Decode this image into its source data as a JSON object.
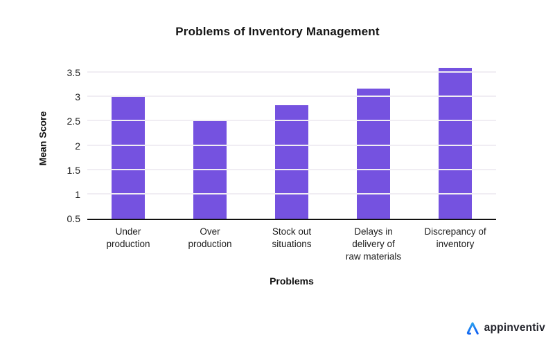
{
  "page": {
    "background": "#ffffff"
  },
  "chart_data": {
    "type": "bar",
    "title": "Problems of Inventory Management",
    "xlabel": "Problems",
    "ylabel": "Mean Score",
    "categories": [
      "Under production",
      "Over production",
      "Stock out situations",
      "Delays in delivery of raw materials",
      "Discrepancy of inventory"
    ],
    "label_lines": [
      [
        "Under",
        "production"
      ],
      [
        "Over",
        "production"
      ],
      [
        "Stock out",
        "situations"
      ],
      [
        "Delays in",
        "delivery of",
        "raw materials"
      ],
      [
        "Discrepancy of",
        "inventory"
      ]
    ],
    "values": [
      3.03,
      2.5,
      2.83,
      3.18,
      3.6
    ],
    "ylim": [
      0.5,
      3.8
    ],
    "yticks": [
      0.5,
      1,
      1.5,
      2,
      2.5,
      3,
      3.5
    ],
    "grid": true,
    "legend": false,
    "bar_color": "#7552e0",
    "gridline_color": "#f0edf3",
    "axis_color": "#111111"
  },
  "branding": {
    "logo_text": "appinventiv",
    "logo_text_color": "#23242c",
    "logo_icon": "appinventiv-a-icon",
    "logo_gradient_top": "#2ea9ee",
    "logo_gradient_bottom": "#1263f2"
  }
}
